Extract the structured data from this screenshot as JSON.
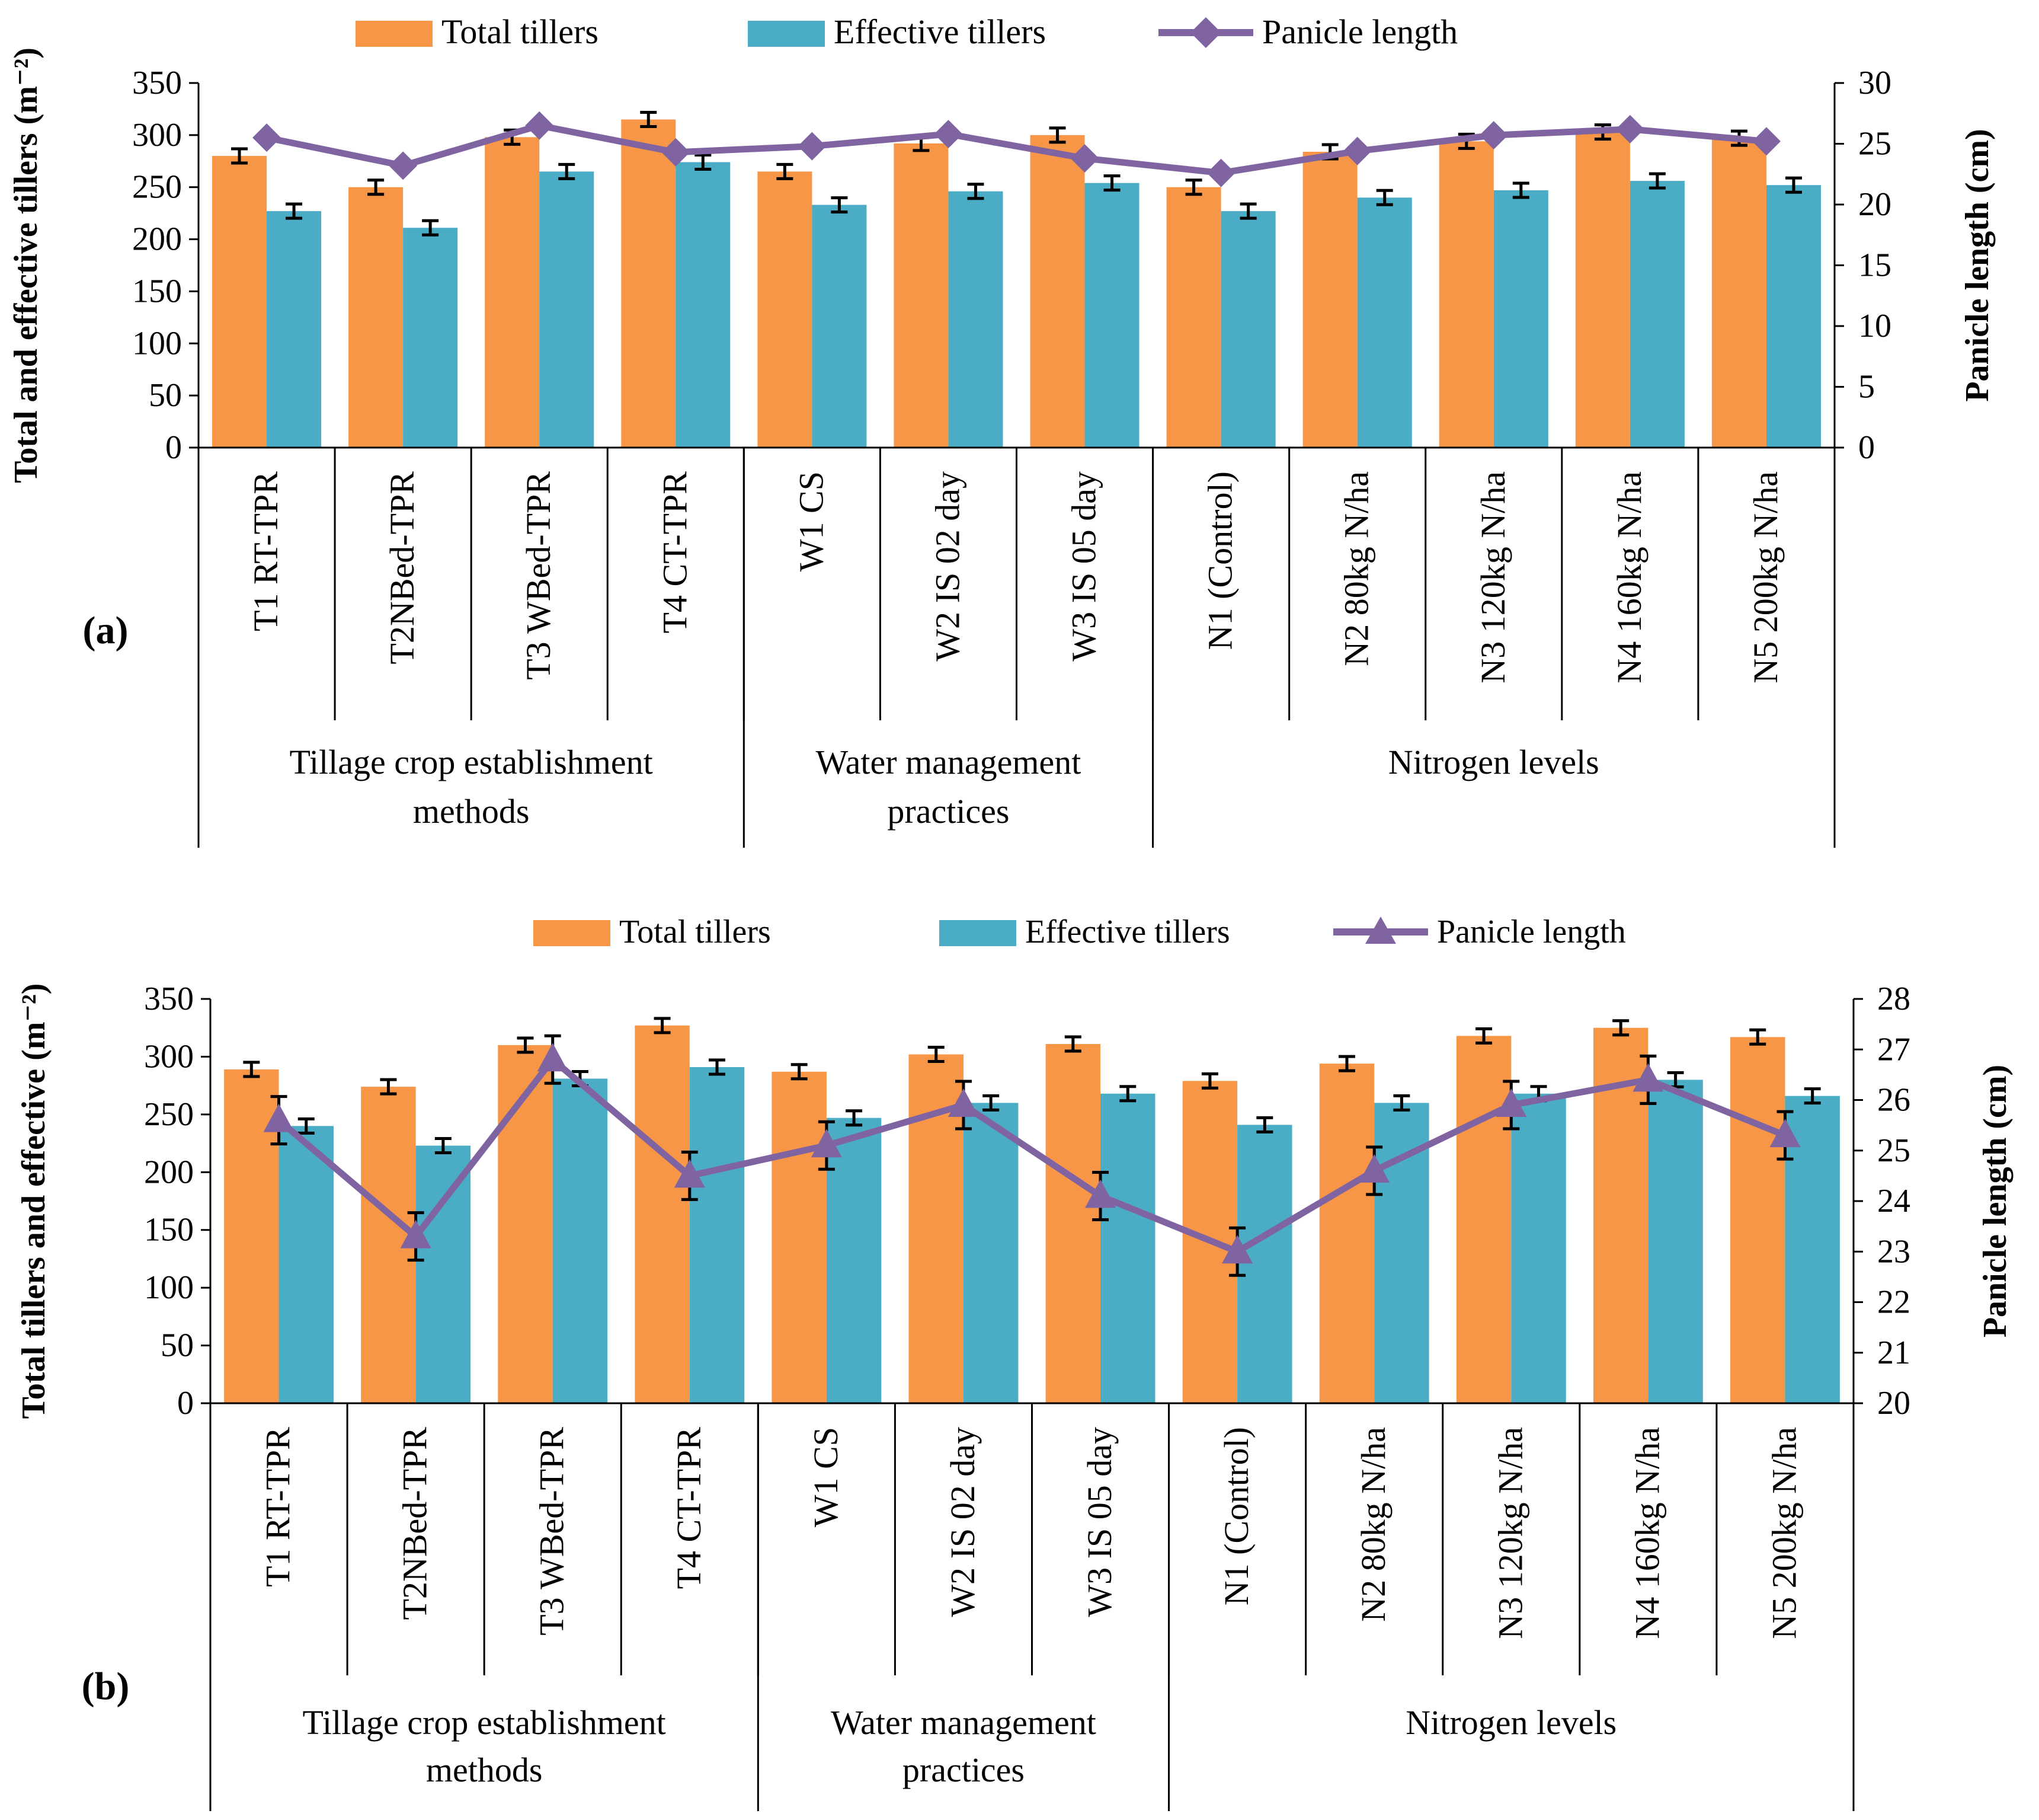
{
  "colors": {
    "total": "#F79646",
    "effective": "#4BACC6",
    "panicle": "#8064A2",
    "axis": "#000000"
  },
  "chart_data": [
    {
      "panel_label": "(a)",
      "type": "bar",
      "legend": {
        "total": "Total tillers",
        "effective": "Effective tillers",
        "panicle": "Panicle length",
        "panicle_marker": "diamond"
      },
      "ylabel": "Total and effective tillers (m⁻²)",
      "y2label": "Panicle length (cm)",
      "ylim": [
        0,
        350
      ],
      "yticks": [
        "0",
        "50",
        "100",
        "150",
        "200",
        "250",
        "300",
        "350"
      ],
      "y2lim": [
        0,
        30
      ],
      "y2ticks": [
        "0",
        "5",
        "10",
        "15",
        "20",
        "25",
        "30"
      ],
      "categories": [
        "T1 RT-TPR",
        "T2NBed-TPR",
        "T3 WBed-TPR",
        "T4 CT-TPR",
        "W1 CS",
        "W2 IS 02 day",
        "W3 IS 05 day",
        "N1 (Control)",
        "N2 80kg N/ha",
        "N3 120kg N/ha",
        "N4 160kg N/ha",
        "N5 200kg N/ha"
      ],
      "groups": [
        {
          "label": "Tillage crop establishment methods",
          "count": 4
        },
        {
          "label": "Water management practices",
          "count": 3
        },
        {
          "label": "Nitrogen levels",
          "count": 5
        }
      ],
      "series": [
        {
          "name": "Total tillers",
          "axis": "left",
          "values": [
            280,
            250,
            298,
            315,
            265,
            292,
            300,
            250,
            284,
            294,
            303,
            297
          ]
        },
        {
          "name": "Effective tillers",
          "axis": "left",
          "values": [
            227,
            211,
            265,
            274,
            233,
            246,
            254,
            227,
            240,
            247,
            256,
            252
          ]
        },
        {
          "name": "Panicle length",
          "axis": "right",
          "values": [
            25.5,
            23.2,
            26.5,
            24.3,
            24.8,
            25.8,
            23.8,
            22.6,
            24.4,
            25.7,
            26.2,
            25.2
          ]
        }
      ]
    },
    {
      "panel_label": "(b)",
      "type": "bar",
      "legend": {
        "total": "Total tillers",
        "effective": "Effective tillers",
        "panicle": "Panicle length",
        "panicle_marker": "triangle"
      },
      "ylabel": "Total tillers and effective (m⁻²)",
      "y2label": "Panicle length (cm)",
      "ylim": [
        0,
        350
      ],
      "yticks": [
        "0",
        "50",
        "100",
        "150",
        "200",
        "250",
        "300",
        "350"
      ],
      "y2lim": [
        20,
        28
      ],
      "y2ticks": [
        "20",
        "21",
        "22",
        "23",
        "24",
        "25",
        "26",
        "27",
        "28"
      ],
      "categories": [
        "T1 RT-TPR",
        "T2NBed-TPR",
        "T3 WBed-TPR",
        "T4 CT-TPR",
        "W1 CS",
        "W2 IS 02 day",
        "W3 IS 05 day",
        "N1 (Control)",
        "N2 80kg N/ha",
        "N3 120kg N/ha",
        "N4 160kg N/ha",
        "N5 200kg N/ha"
      ],
      "groups": [
        {
          "label": "Tillage crop establishment methods",
          "count": 4
        },
        {
          "label": "Water management practices",
          "count": 3
        },
        {
          "label": "Nitrogen levels",
          "count": 5
        }
      ],
      "series": [
        {
          "name": "Total tillers",
          "axis": "left",
          "values": [
            289,
            274,
            310,
            327,
            287,
            302,
            311,
            279,
            294,
            318,
            325,
            317
          ]
        },
        {
          "name": "Effective tillers",
          "axis": "left",
          "values": [
            240,
            223,
            281,
            291,
            247,
            260,
            268,
            241,
            260,
            268,
            280,
            266
          ]
        },
        {
          "name": "Panicle length",
          "axis": "right",
          "values": [
            25.6,
            23.3,
            26.8,
            24.5,
            25.1,
            25.9,
            24.1,
            23.0,
            24.6,
            25.9,
            26.4,
            25.3
          ]
        }
      ]
    }
  ]
}
